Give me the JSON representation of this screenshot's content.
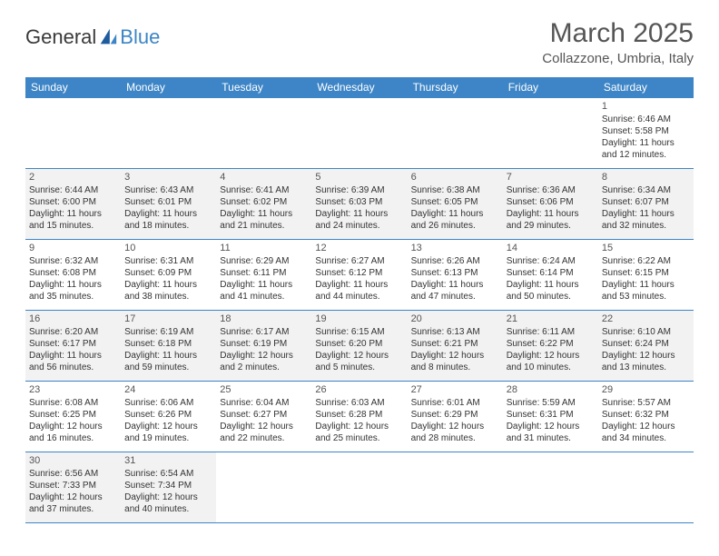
{
  "logo": {
    "text1": "General",
    "text2": "Blue"
  },
  "title": "March 2025",
  "location": "Collazzone, Umbria, Italy",
  "colors": {
    "header_bg": "#3d85c6",
    "header_text": "#ffffff",
    "border": "#3d85c6",
    "shade": "#f2f2f2",
    "text": "#333333",
    "title_text": "#555555"
  },
  "day_headers": [
    "Sunday",
    "Monday",
    "Tuesday",
    "Wednesday",
    "Thursday",
    "Friday",
    "Saturday"
  ],
  "weeks": [
    [
      null,
      null,
      null,
      null,
      null,
      null,
      {
        "n": "1",
        "sr": "Sunrise: 6:46 AM",
        "ss": "Sunset: 5:58 PM",
        "dl": "Daylight: 11 hours and 12 minutes."
      }
    ],
    [
      {
        "n": "2",
        "sr": "Sunrise: 6:44 AM",
        "ss": "Sunset: 6:00 PM",
        "dl": "Daylight: 11 hours and 15 minutes."
      },
      {
        "n": "3",
        "sr": "Sunrise: 6:43 AM",
        "ss": "Sunset: 6:01 PM",
        "dl": "Daylight: 11 hours and 18 minutes."
      },
      {
        "n": "4",
        "sr": "Sunrise: 6:41 AM",
        "ss": "Sunset: 6:02 PM",
        "dl": "Daylight: 11 hours and 21 minutes."
      },
      {
        "n": "5",
        "sr": "Sunrise: 6:39 AM",
        "ss": "Sunset: 6:03 PM",
        "dl": "Daylight: 11 hours and 24 minutes."
      },
      {
        "n": "6",
        "sr": "Sunrise: 6:38 AM",
        "ss": "Sunset: 6:05 PM",
        "dl": "Daylight: 11 hours and 26 minutes."
      },
      {
        "n": "7",
        "sr": "Sunrise: 6:36 AM",
        "ss": "Sunset: 6:06 PM",
        "dl": "Daylight: 11 hours and 29 minutes."
      },
      {
        "n": "8",
        "sr": "Sunrise: 6:34 AM",
        "ss": "Sunset: 6:07 PM",
        "dl": "Daylight: 11 hours and 32 minutes."
      }
    ],
    [
      {
        "n": "9",
        "sr": "Sunrise: 6:32 AM",
        "ss": "Sunset: 6:08 PM",
        "dl": "Daylight: 11 hours and 35 minutes."
      },
      {
        "n": "10",
        "sr": "Sunrise: 6:31 AM",
        "ss": "Sunset: 6:09 PM",
        "dl": "Daylight: 11 hours and 38 minutes."
      },
      {
        "n": "11",
        "sr": "Sunrise: 6:29 AM",
        "ss": "Sunset: 6:11 PM",
        "dl": "Daylight: 11 hours and 41 minutes."
      },
      {
        "n": "12",
        "sr": "Sunrise: 6:27 AM",
        "ss": "Sunset: 6:12 PM",
        "dl": "Daylight: 11 hours and 44 minutes."
      },
      {
        "n": "13",
        "sr": "Sunrise: 6:26 AM",
        "ss": "Sunset: 6:13 PM",
        "dl": "Daylight: 11 hours and 47 minutes."
      },
      {
        "n": "14",
        "sr": "Sunrise: 6:24 AM",
        "ss": "Sunset: 6:14 PM",
        "dl": "Daylight: 11 hours and 50 minutes."
      },
      {
        "n": "15",
        "sr": "Sunrise: 6:22 AM",
        "ss": "Sunset: 6:15 PM",
        "dl": "Daylight: 11 hours and 53 minutes."
      }
    ],
    [
      {
        "n": "16",
        "sr": "Sunrise: 6:20 AM",
        "ss": "Sunset: 6:17 PM",
        "dl": "Daylight: 11 hours and 56 minutes."
      },
      {
        "n": "17",
        "sr": "Sunrise: 6:19 AM",
        "ss": "Sunset: 6:18 PM",
        "dl": "Daylight: 11 hours and 59 minutes."
      },
      {
        "n": "18",
        "sr": "Sunrise: 6:17 AM",
        "ss": "Sunset: 6:19 PM",
        "dl": "Daylight: 12 hours and 2 minutes."
      },
      {
        "n": "19",
        "sr": "Sunrise: 6:15 AM",
        "ss": "Sunset: 6:20 PM",
        "dl": "Daylight: 12 hours and 5 minutes."
      },
      {
        "n": "20",
        "sr": "Sunrise: 6:13 AM",
        "ss": "Sunset: 6:21 PM",
        "dl": "Daylight: 12 hours and 8 minutes."
      },
      {
        "n": "21",
        "sr": "Sunrise: 6:11 AM",
        "ss": "Sunset: 6:22 PM",
        "dl": "Daylight: 12 hours and 10 minutes."
      },
      {
        "n": "22",
        "sr": "Sunrise: 6:10 AM",
        "ss": "Sunset: 6:24 PM",
        "dl": "Daylight: 12 hours and 13 minutes."
      }
    ],
    [
      {
        "n": "23",
        "sr": "Sunrise: 6:08 AM",
        "ss": "Sunset: 6:25 PM",
        "dl": "Daylight: 12 hours and 16 minutes."
      },
      {
        "n": "24",
        "sr": "Sunrise: 6:06 AM",
        "ss": "Sunset: 6:26 PM",
        "dl": "Daylight: 12 hours and 19 minutes."
      },
      {
        "n": "25",
        "sr": "Sunrise: 6:04 AM",
        "ss": "Sunset: 6:27 PM",
        "dl": "Daylight: 12 hours and 22 minutes."
      },
      {
        "n": "26",
        "sr": "Sunrise: 6:03 AM",
        "ss": "Sunset: 6:28 PM",
        "dl": "Daylight: 12 hours and 25 minutes."
      },
      {
        "n": "27",
        "sr": "Sunrise: 6:01 AM",
        "ss": "Sunset: 6:29 PM",
        "dl": "Daylight: 12 hours and 28 minutes."
      },
      {
        "n": "28",
        "sr": "Sunrise: 5:59 AM",
        "ss": "Sunset: 6:31 PM",
        "dl": "Daylight: 12 hours and 31 minutes."
      },
      {
        "n": "29",
        "sr": "Sunrise: 5:57 AM",
        "ss": "Sunset: 6:32 PM",
        "dl": "Daylight: 12 hours and 34 minutes."
      }
    ],
    [
      {
        "n": "30",
        "sr": "Sunrise: 6:56 AM",
        "ss": "Sunset: 7:33 PM",
        "dl": "Daylight: 12 hours and 37 minutes."
      },
      {
        "n": "31",
        "sr": "Sunrise: 6:54 AM",
        "ss": "Sunset: 7:34 PM",
        "dl": "Daylight: 12 hours and 40 minutes."
      },
      null,
      null,
      null,
      null,
      null
    ]
  ]
}
